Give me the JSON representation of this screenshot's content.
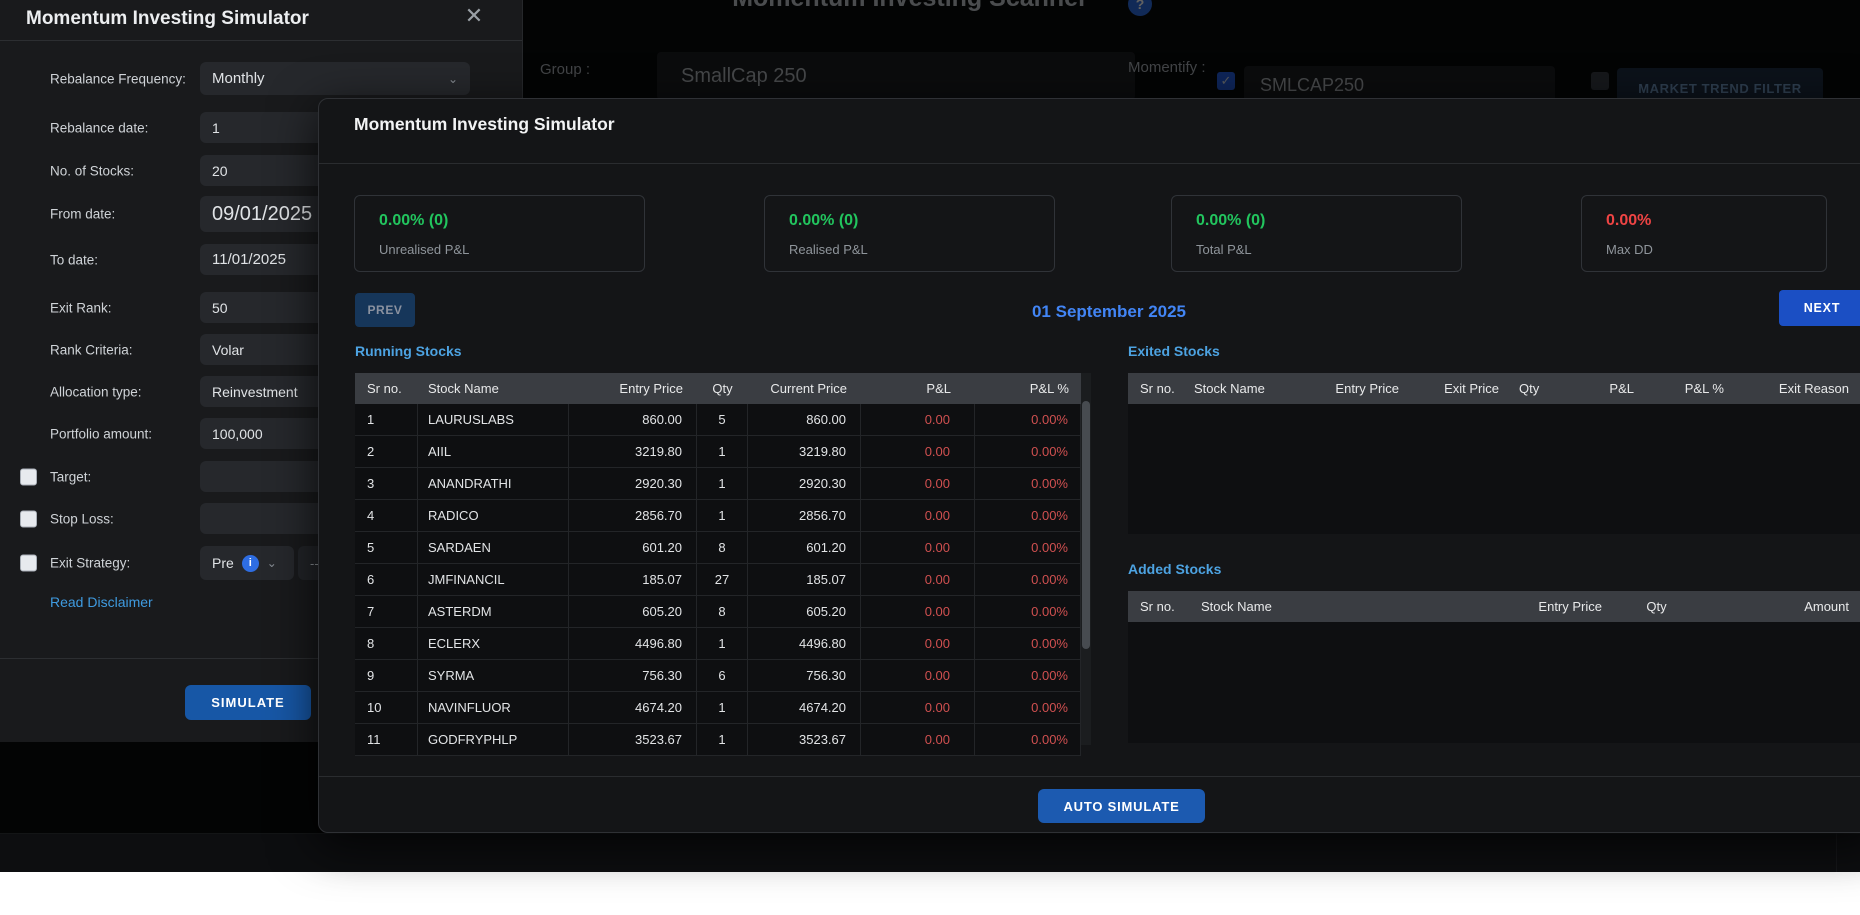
{
  "theme": {
    "accent_blue": "#1c5ab0",
    "link_blue": "#4da3e2",
    "date_blue": "#4285f5",
    "positive_green": "#22c55e",
    "negative_red": "#ef4444",
    "pnl_red": "#d05050"
  },
  "background": {
    "page_title": "Momentum Investing Scanner",
    "help_icon": "?",
    "group_label": "Group :",
    "group_value": "SmallCap 250",
    "momentify_label": "Momentify :",
    "momentify_checked": true,
    "momentify_value": "SMLCAP250",
    "market_trend_checked": false,
    "market_trend_filter_label": "MARKET TREND FILTER"
  },
  "settings_panel": {
    "title": "Momentum Investing Simulator",
    "close_glyph": "✕",
    "rows": [
      {
        "label": "Rebalance Frequency:",
        "value": "Monthly"
      },
      {
        "label": "Rebalance date:",
        "value": "1"
      },
      {
        "label": "No. of Stocks:",
        "value": "20"
      },
      {
        "label": "From date:",
        "value": "09/01/2025"
      },
      {
        "label": "To date:",
        "value": "11/01/2025"
      },
      {
        "label": "Exit Rank:",
        "value": "50"
      },
      {
        "label": "Rank Criteria:",
        "value": "Volar"
      },
      {
        "label": "Allocation type:",
        "value": "Reinvestment"
      },
      {
        "label": "Portfolio amount:",
        "value": "100,000"
      },
      {
        "label": "Target:",
        "value": "",
        "checked": false
      },
      {
        "label": "Stop Loss:",
        "value": "",
        "checked": false
      },
      {
        "label": "Exit Strategy:",
        "value": "Pre",
        "checked": false
      }
    ],
    "exit_strategy_info_glyph": "i",
    "exit_strategy_secondary": "--",
    "disclaimer_link": "Read Disclaimer",
    "simulate_button": "SIMULATE"
  },
  "modal": {
    "title": "Momentum Investing Simulator",
    "stats": [
      {
        "value": "0.00% (0)",
        "label": "Unrealised P&L",
        "value_color": "#22c55e"
      },
      {
        "value": "0.00% (0)",
        "label": "Realised P&L",
        "value_color": "#22c55e"
      },
      {
        "value": "0.00% (0)",
        "label": "Total P&L",
        "value_color": "#22c55e"
      },
      {
        "value": "0.00%",
        "label": "Max DD",
        "value_color": "#ef4444"
      }
    ],
    "prev_button": "PREV",
    "date": "01 September 2025",
    "next_button": "NEXT",
    "running": {
      "heading": "Running Stocks",
      "columns": [
        "Sr no.",
        "Stock Name",
        "Entry Price",
        "Qty",
        "Current Price",
        "P&L",
        "P&L %"
      ],
      "rows": [
        [
          "1",
          "LAURUSLABS",
          "860.00",
          "5",
          "860.00",
          "0.00",
          "0.00%"
        ],
        [
          "2",
          "AIIL",
          "3219.80",
          "1",
          "3219.80",
          "0.00",
          "0.00%"
        ],
        [
          "3",
          "ANANDRATHI",
          "2920.30",
          "1",
          "2920.30",
          "0.00",
          "0.00%"
        ],
        [
          "4",
          "RADICO",
          "2856.70",
          "1",
          "2856.70",
          "0.00",
          "0.00%"
        ],
        [
          "5",
          "SARDAEN",
          "601.20",
          "8",
          "601.20",
          "0.00",
          "0.00%"
        ],
        [
          "6",
          "JMFINANCIL",
          "185.07",
          "27",
          "185.07",
          "0.00",
          "0.00%"
        ],
        [
          "7",
          "ASTERDM",
          "605.20",
          "8",
          "605.20",
          "0.00",
          "0.00%"
        ],
        [
          "8",
          "ECLERX",
          "4496.80",
          "1",
          "4496.80",
          "0.00",
          "0.00%"
        ],
        [
          "9",
          "SYRMA",
          "756.30",
          "6",
          "756.30",
          "0.00",
          "0.00%"
        ],
        [
          "10",
          "NAVINFLUOR",
          "4674.20",
          "1",
          "4674.20",
          "0.00",
          "0.00%"
        ],
        [
          "11",
          "GODFRYPHLP",
          "3523.67",
          "1",
          "3523.67",
          "0.00",
          "0.00%"
        ]
      ]
    },
    "exited": {
      "heading": "Exited Stocks",
      "columns": [
        "Sr no.",
        "Stock Name",
        "Entry Price",
        "Exit Price",
        "Qty",
        "P&L",
        "P&L %",
        "Exit Reason"
      ],
      "rows": []
    },
    "added": {
      "heading": "Added Stocks",
      "columns": [
        "Sr no.",
        "Stock Name",
        "Entry Price",
        "Qty",
        "Amount"
      ],
      "rows": []
    },
    "auto_simulate_button": "AUTO SIMULATE"
  }
}
